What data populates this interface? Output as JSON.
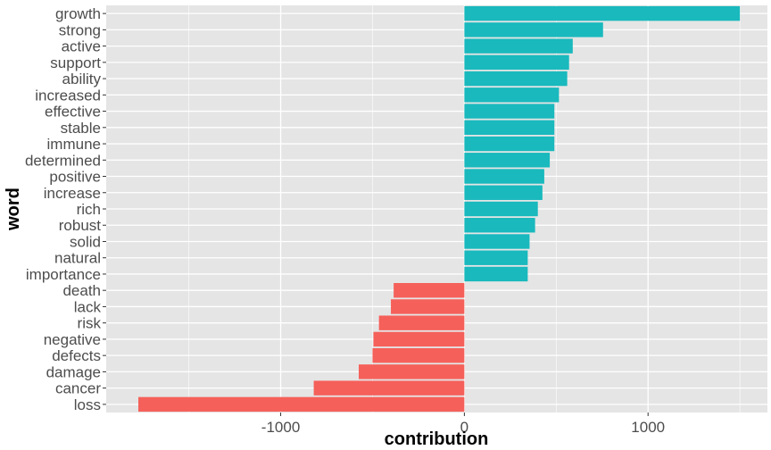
{
  "chart_data": {
    "type": "bar",
    "orientation": "horizontal",
    "title": "",
    "xlabel": "contribution",
    "ylabel": "word",
    "xlim": [
      -1950,
      1650
    ],
    "x_ticks": [
      -1000,
      0,
      1000
    ],
    "x_tick_labels": [
      "-1000",
      "0",
      "1000"
    ],
    "grid": true,
    "legend": "none",
    "colors": {
      "positive": "#19B9BD",
      "negative": "#F5605A",
      "panel": "#E5E5E5",
      "grid": "#FFFFFF"
    },
    "categories": [
      "growth",
      "strong",
      "active",
      "support",
      "ability",
      "increased",
      "effective",
      "stable",
      "immune",
      "determined",
      "positive",
      "increase",
      "rich",
      "robust",
      "solid",
      "natural",
      "importance",
      "death",
      "lack",
      "risk",
      "negative",
      "defects",
      "damage",
      "cancer",
      "loss"
    ],
    "values": [
      1500,
      755,
      590,
      570,
      560,
      515,
      490,
      490,
      490,
      465,
      435,
      425,
      400,
      385,
      355,
      345,
      345,
      -385,
      -400,
      -465,
      -495,
      -500,
      -575,
      -820,
      -1775
    ]
  }
}
